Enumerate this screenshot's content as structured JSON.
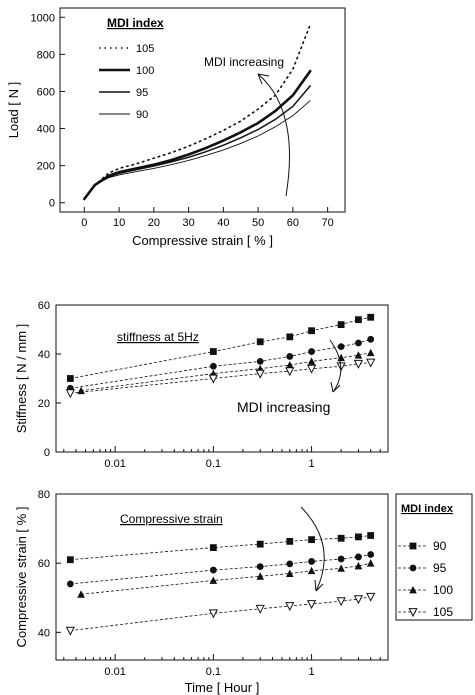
{
  "chart_data": [
    {
      "type": "line",
      "xlabel": "Compressive strain [ % ]",
      "ylabel": "Load [ N ]",
      "xlim": [
        -7,
        75
      ],
      "ylim": [
        -50,
        1050
      ],
      "xticks": [
        0,
        10,
        20,
        30,
        40,
        50,
        60,
        70
      ],
      "yticks": [
        0,
        200,
        400,
        600,
        800,
        1000
      ],
      "legend_title": "MDI index",
      "legend_position": "top-left",
      "annotation": "MDI increasing",
      "series": [
        {
          "name": "105",
          "style": "dotted",
          "points": [
            [
              0,
              20
            ],
            [
              3,
              95
            ],
            [
              7,
              160
            ],
            [
              10,
              185
            ],
            [
              15,
              210
            ],
            [
              20,
              240
            ],
            [
              25,
              270
            ],
            [
              30,
              305
            ],
            [
              35,
              345
            ],
            [
              40,
              390
            ],
            [
              45,
              440
            ],
            [
              50,
              505
            ],
            [
              55,
              580
            ],
            [
              60,
              720
            ],
            [
              65,
              960
            ]
          ]
        },
        {
          "name": "100",
          "style": "thick",
          "points": [
            [
              0,
              20
            ],
            [
              3,
              95
            ],
            [
              7,
              145
            ],
            [
              10,
              165
            ],
            [
              15,
              185
            ],
            [
              20,
              205
            ],
            [
              25,
              230
            ],
            [
              30,
              260
            ],
            [
              35,
              295
            ],
            [
              40,
              335
            ],
            [
              45,
              380
            ],
            [
              50,
              430
            ],
            [
              55,
              495
            ],
            [
              60,
              580
            ],
            [
              65,
              710
            ]
          ]
        },
        {
          "name": "95",
          "style": "solid",
          "points": [
            [
              0,
              20
            ],
            [
              3,
              95
            ],
            [
              7,
              140
            ],
            [
              10,
              158
            ],
            [
              15,
              178
            ],
            [
              20,
              198
            ],
            [
              25,
              220
            ],
            [
              30,
              245
            ],
            [
              35,
              275
            ],
            [
              40,
              310
            ],
            [
              45,
              350
            ],
            [
              50,
              395
            ],
            [
              55,
              450
            ],
            [
              60,
              520
            ],
            [
              65,
              630
            ]
          ]
        },
        {
          "name": "90",
          "style": "thin",
          "points": [
            [
              0,
              20
            ],
            [
              3,
              95
            ],
            [
              7,
              135
            ],
            [
              10,
              150
            ],
            [
              15,
              168
            ],
            [
              20,
              185
            ],
            [
              25,
              205
            ],
            [
              30,
              228
            ],
            [
              35,
              255
            ],
            [
              40,
              285
            ],
            [
              45,
              320
            ],
            [
              50,
              360
            ],
            [
              55,
              410
            ],
            [
              60,
              470
            ],
            [
              65,
              550
            ]
          ]
        }
      ]
    },
    {
      "type": "scatter",
      "xscale": "log",
      "ylabel": "Stiffness [ N / mm ]",
      "xlim": [
        0.0025,
        6
      ],
      "ylim": [
        0,
        60
      ],
      "xticks": [
        0.01,
        0.1,
        1
      ],
      "xticklabels": [
        "0.01",
        "0.1",
        "1"
      ],
      "yticks": [
        0,
        20,
        40,
        60
      ],
      "title": "stiffness at 5Hz",
      "annotation": "MDI increasing",
      "series": [
        {
          "name": "90",
          "marker": "square",
          "x": [
            0.0035,
            0.1,
            0.3,
            0.6,
            1,
            2,
            3,
            4
          ],
          "y": [
            30,
            41,
            45,
            47,
            49.5,
            52,
            54,
            55
          ]
        },
        {
          "name": "95",
          "marker": "circle",
          "x": [
            0.0035,
            0.1,
            0.3,
            0.6,
            1,
            2,
            3,
            4
          ],
          "y": [
            26,
            35,
            37,
            39,
            41,
            43,
            44.5,
            46
          ]
        },
        {
          "name": "100",
          "marker": "triangle",
          "x": [
            0.0045,
            0.1,
            0.3,
            0.6,
            1,
            2,
            3,
            4
          ],
          "y": [
            25,
            32,
            34,
            35.5,
            37,
            38.5,
            39.5,
            40.5
          ]
        },
        {
          "name": "105",
          "marker": "triangle-down",
          "x": [
            0.0035,
            0.1,
            0.3,
            0.6,
            1,
            2,
            3,
            4
          ],
          "y": [
            24,
            30,
            32,
            33,
            34,
            35,
            36,
            36.5
          ]
        }
      ]
    },
    {
      "type": "scatter",
      "xscale": "log",
      "xlabel": "Time [ Hour ]",
      "ylabel": "Compressive strain [ % ]",
      "xlim": [
        0.0025,
        6
      ],
      "ylim": [
        32,
        80
      ],
      "xticks": [
        0.01,
        0.1,
        1
      ],
      "xticklabels": [
        "0.01",
        "0.1",
        "1"
      ],
      "yticks": [
        40,
        60,
        80
      ],
      "title": "Compressive strain",
      "legend_title": "MDI index",
      "legend_position": "right-outside",
      "series": [
        {
          "name": "90",
          "marker": "square",
          "x": [
            0.0035,
            0.1,
            0.3,
            0.6,
            1,
            2,
            3,
            4
          ],
          "y": [
            61,
            64.5,
            65.5,
            66.3,
            66.8,
            67.2,
            67.6,
            68
          ]
        },
        {
          "name": "95",
          "marker": "circle",
          "x": [
            0.0035,
            0.1,
            0.3,
            0.6,
            1,
            2,
            3,
            4
          ],
          "y": [
            54,
            58,
            59,
            59.8,
            60.5,
            61.2,
            61.8,
            62.5
          ]
        },
        {
          "name": "100",
          "marker": "triangle",
          "x": [
            0.0045,
            0.1,
            0.3,
            0.6,
            1,
            2,
            3,
            4
          ],
          "y": [
            51,
            55,
            56.2,
            57,
            57.8,
            58.5,
            59.2,
            60
          ]
        },
        {
          "name": "105",
          "marker": "triangle-down",
          "x": [
            0.0035,
            0.1,
            0.3,
            0.6,
            1,
            2,
            3,
            4
          ],
          "y": [
            40.5,
            45.5,
            46.8,
            47.6,
            48.2,
            49,
            49.6,
            50.3
          ]
        }
      ]
    }
  ]
}
